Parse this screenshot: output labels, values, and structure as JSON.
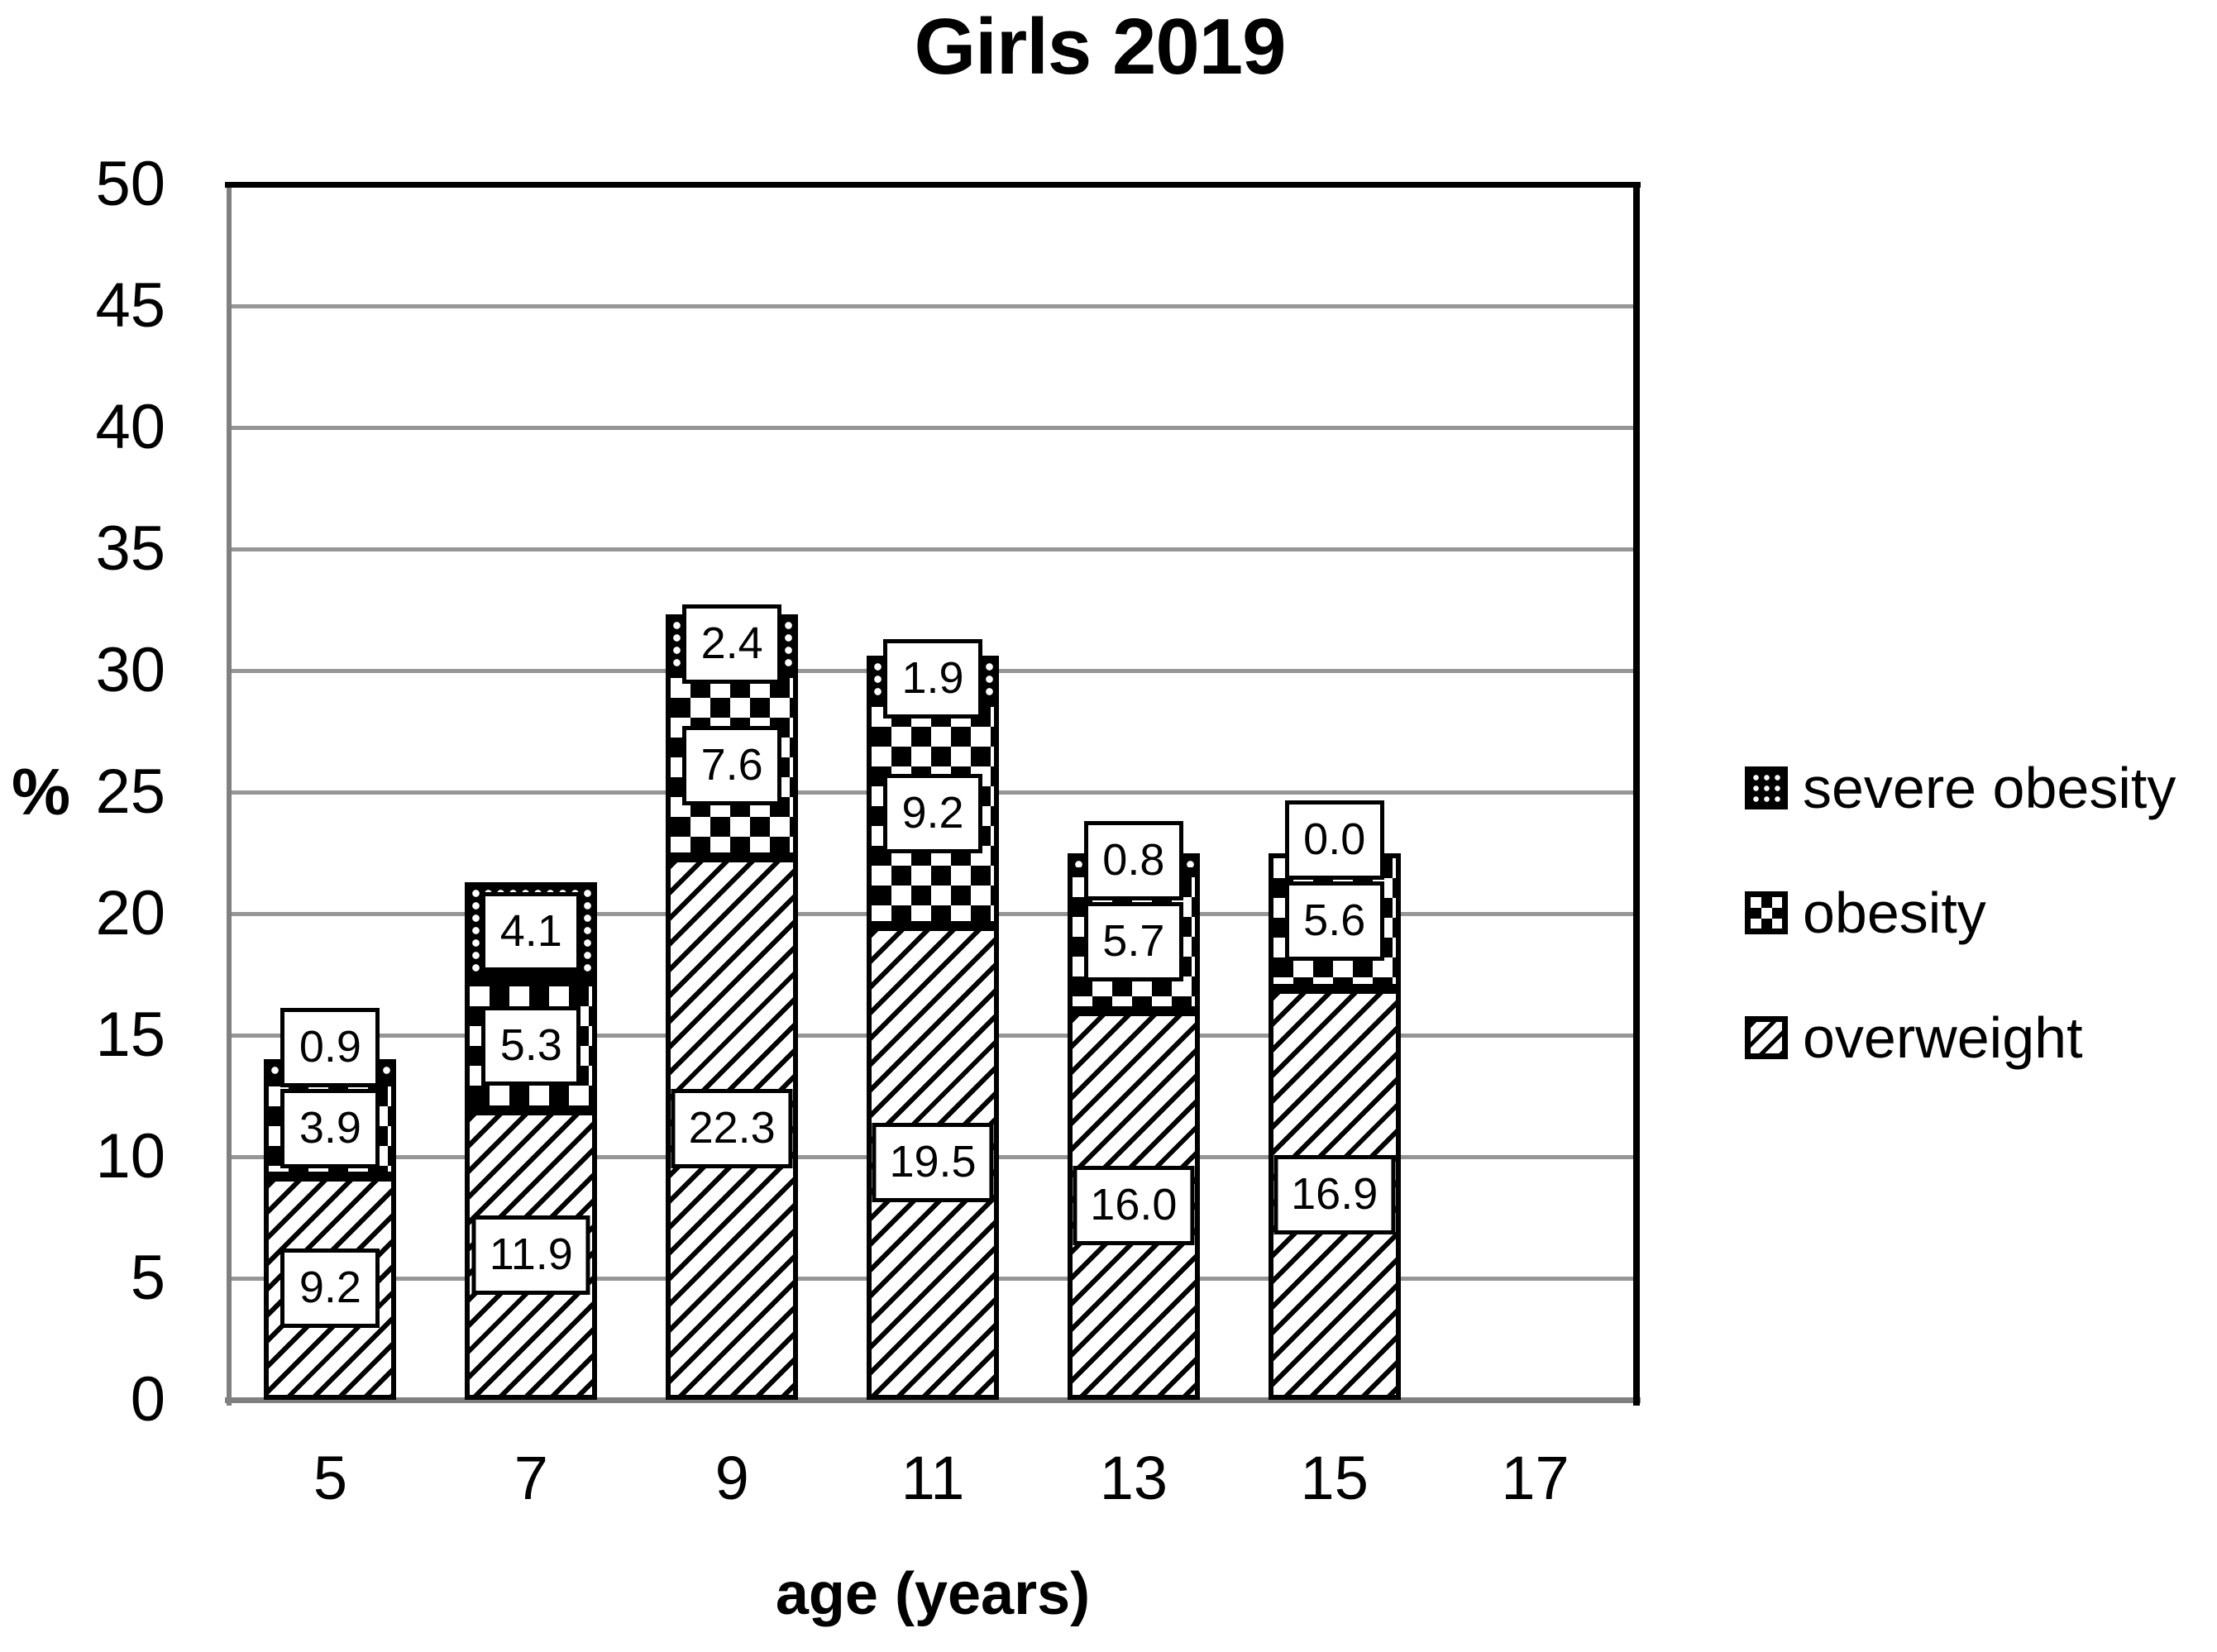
{
  "title": "Girls 2019",
  "y_axis": {
    "unit": "%",
    "min": 0,
    "max": 50,
    "step": 5,
    "tick_labels": [
      "0",
      "5",
      "10",
      "15",
      "20",
      "25",
      "30",
      "35",
      "40",
      "45",
      "50"
    ]
  },
  "x_axis": {
    "title": "age (years)",
    "tick_labels": [
      "5",
      "7",
      "9",
      "11",
      "13",
      "15",
      "17"
    ]
  },
  "legend": {
    "position": "right",
    "items": [
      {
        "label": "severe obesity",
        "pattern": "dots-on-black"
      },
      {
        "label": "obesity",
        "pattern": "checkerboard"
      },
      {
        "label": "overweight",
        "pattern": "diagonal-hatch"
      }
    ]
  },
  "colors": {
    "foreground": "#000000",
    "gridline": "#969696",
    "axis": "#808080",
    "background": "#ffffff"
  },
  "chart_data": {
    "type": "bar",
    "stacked": true,
    "title": "Girls 2019",
    "xlabel": "age (years)",
    "ylabel": "%",
    "ylim": [
      0,
      50
    ],
    "grid": true,
    "legend_position": "right",
    "categories": [
      5,
      7,
      9,
      11,
      13,
      15,
      17
    ],
    "series": [
      {
        "name": "overweight",
        "pattern": "diagonal-hatch",
        "values": [
          9.2,
          11.9,
          22.3,
          19.5,
          16.0,
          16.9,
          null
        ]
      },
      {
        "name": "obesity",
        "pattern": "checkerboard",
        "values": [
          3.9,
          5.3,
          7.6,
          9.2,
          5.7,
          5.6,
          null
        ]
      },
      {
        "name": "severe obesity",
        "pattern": "dots-on-black",
        "values": [
          0.9,
          4.1,
          2.4,
          1.9,
          0.8,
          0.0,
          null
        ]
      }
    ]
  }
}
